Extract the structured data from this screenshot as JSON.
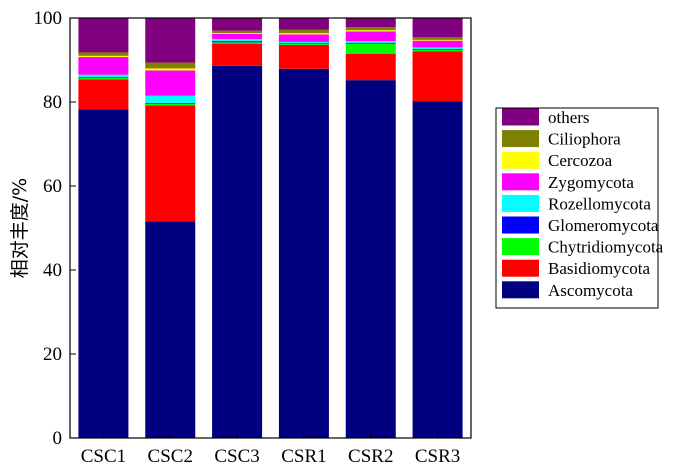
{
  "chart_data": {
    "type": "bar",
    "stacked": true,
    "title": "",
    "xlabel": "",
    "ylabel": "相对丰度/%",
    "ylim": [
      0,
      100
    ],
    "yticks": [
      0,
      20,
      40,
      60,
      80,
      100
    ],
    "categories": [
      "CSC1",
      "CSC2",
      "CSC3",
      "CSR1",
      "CSR2",
      "CSR3"
    ],
    "legend_position": "right",
    "series": [
      {
        "name": "Ascomycota",
        "color": "#000080",
        "values": [
          78.2,
          51.6,
          88.6,
          87.9,
          85.2,
          80.2
        ]
      },
      {
        "name": "Basidiomycota",
        "color": "#ff0000",
        "values": [
          7.2,
          27.6,
          5.3,
          5.7,
          6.3,
          11.9
        ]
      },
      {
        "name": "Chytridiomycota",
        "color": "#00ff00",
        "values": [
          0.3,
          0.4,
          0.3,
          0.2,
          2.4,
          0.3
        ]
      },
      {
        "name": "Glomeromycota",
        "color": "#0000ff",
        "values": [
          0.2,
          0.2,
          0.3,
          0.2,
          0.2,
          0.2
        ]
      },
      {
        "name": "Rozellomycota",
        "color": "#00ffff",
        "values": [
          0.6,
          1.7,
          0.5,
          0.3,
          0.4,
          0.4
        ]
      },
      {
        "name": "Zygomycota",
        "color": "#ff00ff",
        "values": [
          4.2,
          6.0,
          1.2,
          1.8,
          2.3,
          1.6
        ]
      },
      {
        "name": "Cercozoa",
        "color": "#ffff00",
        "values": [
          0.3,
          0.5,
          0.2,
          0.3,
          0.3,
          0.2
        ]
      },
      {
        "name": "Ciliophora",
        "color": "#808000",
        "values": [
          0.8,
          1.4,
          0.6,
          0.8,
          0.7,
          0.6
        ]
      },
      {
        "name": "others",
        "color": "#800080",
        "values": [
          8.2,
          10.6,
          3.0,
          2.8,
          2.2,
          4.6
        ]
      }
    ]
  }
}
